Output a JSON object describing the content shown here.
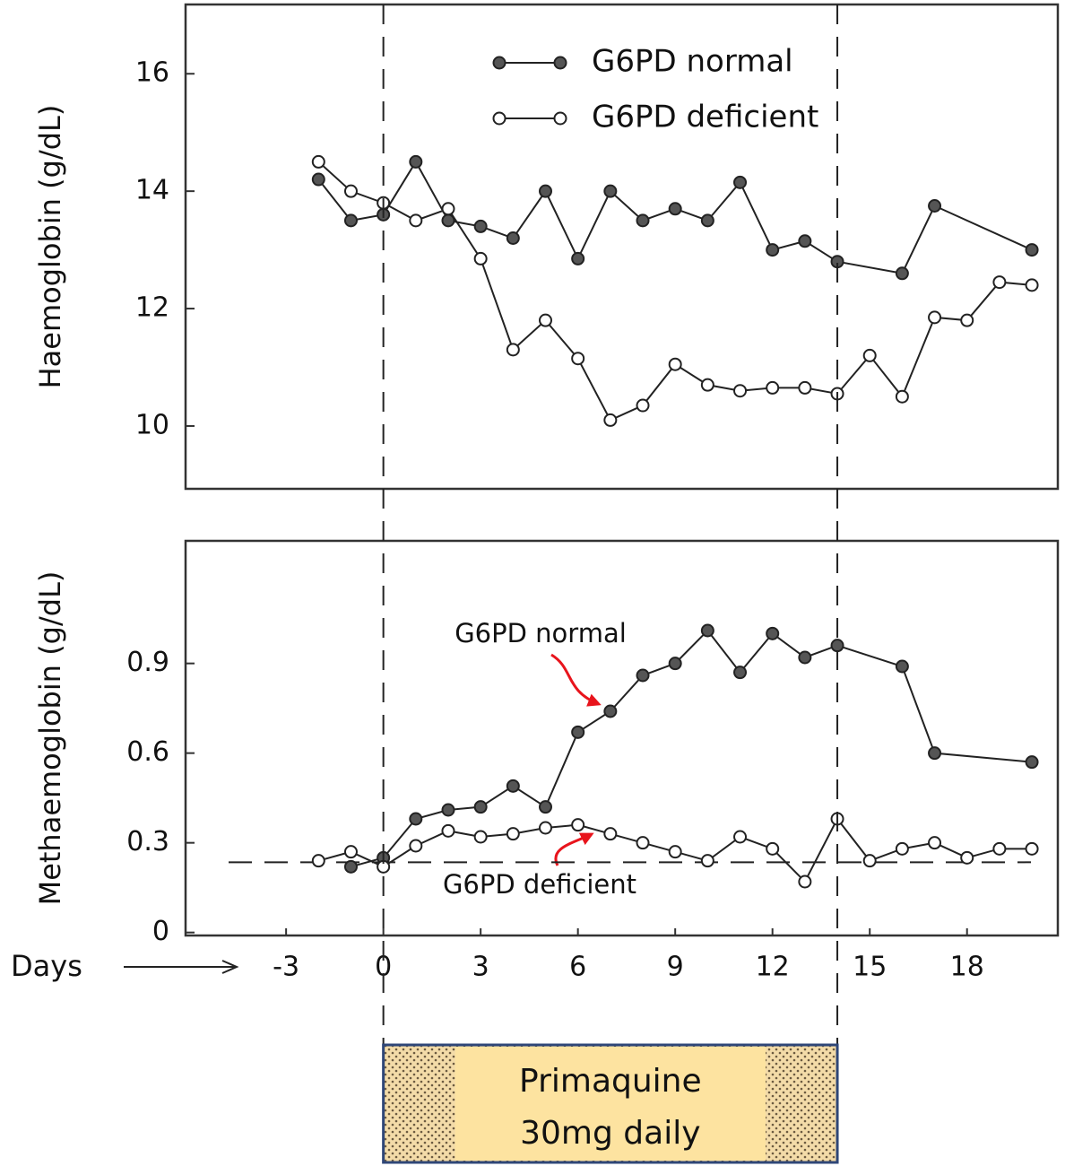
{
  "chart_data": [
    {
      "type": "line",
      "ylabel": "Haemoglobin (g/dL)",
      "xlim": [
        -6.1,
        20.8
      ],
      "ylim": [
        8.93,
        17.18
      ],
      "yticks": [
        10,
        12,
        14,
        16
      ],
      "series": [
        {
          "name": "G6PD normal",
          "color": "#555555",
          "x": [
            -2,
            -1,
            0,
            1,
            2,
            3,
            4,
            5,
            6,
            7,
            8,
            9,
            10,
            11,
            12,
            13,
            14,
            16,
            17,
            20
          ],
          "values": [
            14.2,
            13.5,
            13.6,
            14.5,
            13.5,
            13.4,
            13.2,
            14.0,
            12.85,
            14.0,
            13.5,
            13.7,
            13.5,
            14.15,
            13.0,
            13.15,
            12.8,
            12.6,
            13.75,
            13.0
          ]
        },
        {
          "name": "G6PD deficient",
          "color": "#ffffff",
          "x": [
            -2,
            -1,
            0,
            1,
            2,
            3,
            4,
            5,
            6,
            7,
            8,
            9,
            10,
            11,
            12,
            13,
            14,
            15,
            16,
            17,
            18,
            19,
            20
          ],
          "values": [
            14.5,
            14.0,
            13.8,
            13.5,
            13.7,
            12.85,
            11.3,
            11.8,
            11.15,
            10.1,
            10.35,
            11.05,
            10.7,
            10.6,
            10.65,
            10.65,
            10.55,
            11.2,
            10.5,
            11.85,
            11.8,
            12.45,
            12.4
          ]
        }
      ]
    },
    {
      "type": "line",
      "ylabel": "Methaemoglobin (g/dL)",
      "xlabel": "Days",
      "xlim": [
        -6.1,
        20.8
      ],
      "xticks": [
        -3,
        0,
        3,
        6,
        9,
        12,
        15,
        18
      ],
      "ylim": [
        -0.01,
        1.31
      ],
      "yticks": [
        0,
        0.3,
        0.6,
        0.9
      ],
      "baseline": 0.235,
      "series": [
        {
          "name": "G6PD normal",
          "color": "#555555",
          "x": [
            -1,
            0,
            1,
            2,
            3,
            4,
            5,
            6,
            7,
            8,
            9,
            10,
            11,
            12,
            13,
            14,
            16,
            17,
            20
          ],
          "values": [
            0.22,
            0.25,
            0.38,
            0.41,
            0.42,
            0.49,
            0.42,
            0.67,
            0.74,
            0.86,
            0.9,
            1.01,
            0.87,
            1.0,
            0.92,
            0.96,
            0.89,
            0.6,
            0.57
          ]
        },
        {
          "name": "G6PD deficient",
          "color": "#ffffff",
          "x": [
            -2,
            -1,
            0,
            1,
            2,
            3,
            4,
            5,
            6,
            7,
            8,
            9,
            10,
            11,
            12,
            13,
            14,
            15,
            16,
            17,
            18,
            19,
            20
          ],
          "values": [
            0.24,
            0.27,
            0.22,
            0.29,
            0.34,
            0.32,
            0.33,
            0.35,
            0.36,
            0.33,
            0.3,
            0.27,
            0.24,
            0.32,
            0.28,
            0.17,
            0.38,
            0.24,
            0.28,
            0.3,
            0.25,
            0.28,
            0.28
          ]
        }
      ]
    }
  ],
  "treatment": {
    "start": 0,
    "end": 14,
    "label": [
      "Primaquine",
      "30mg daily"
    ]
  }
}
